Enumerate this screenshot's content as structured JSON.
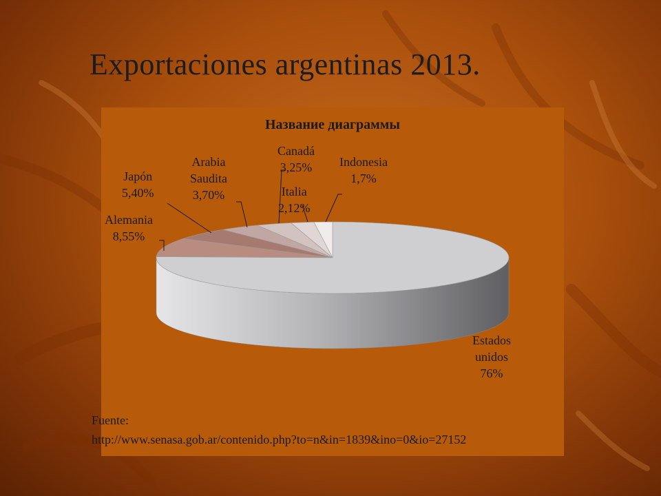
{
  "slide": {
    "title": "Exportaciones argentinas 2013.",
    "source_label": "Fuente:",
    "source_url": "http://www.senasa.gob.ar/contenido.php?to=n&in=1839&ino=0&io=27152"
  },
  "colors": {
    "panel": "#b75b0a",
    "background": "#a94f0c"
  },
  "chart_data": {
    "type": "pie",
    "title": "Название диаграммы",
    "style": "3d",
    "slices": [
      {
        "name": "Estados unidos",
        "value": 76,
        "label": "76%",
        "color": "#cfcfd2"
      },
      {
        "name": "Alemania",
        "value": 8.55,
        "label": "8,55%",
        "color": "#b98c80"
      },
      {
        "name": "Japón",
        "value": 5.4,
        "label": "5,40%",
        "color": "#a77a70"
      },
      {
        "name": "Arabia Saudita",
        "value": 3.7,
        "label": "3,70%",
        "color": "#c0a7a3"
      },
      {
        "name": "Canadá",
        "value": 3.25,
        "label": "3,25%",
        "color": "#d2c2c0"
      },
      {
        "name": "Italia",
        "value": 2.12,
        "label": "2,12%",
        "color": "#e0d6d5"
      },
      {
        "name": "Indonesia",
        "value": 1.7,
        "label": "1,7%",
        "color": "#f1ecec"
      }
    ]
  }
}
